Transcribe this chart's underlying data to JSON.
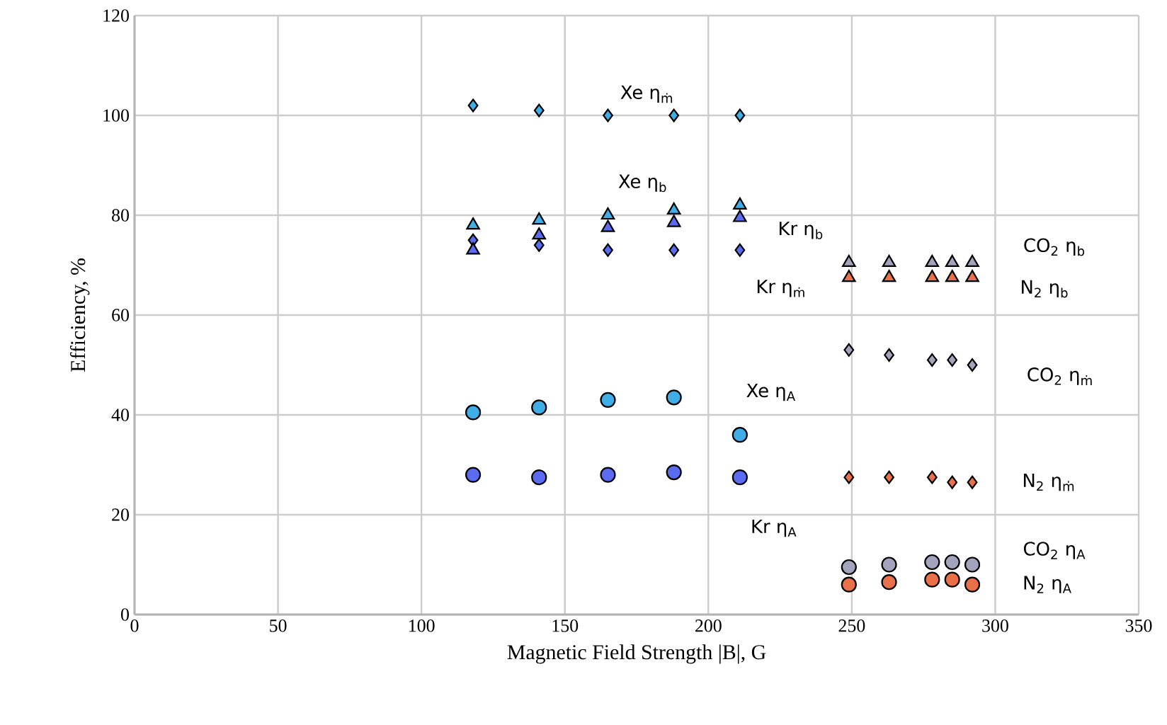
{
  "chart_data": {
    "type": "scatter",
    "xlabel": "Magnetic Field Strength |B|, G",
    "ylabel": "Efficiency, %",
    "xlim": [
      0,
      350
    ],
    "ylim": [
      0,
      120
    ],
    "xticks": [
      0,
      50,
      100,
      150,
      200,
      250,
      300,
      350
    ],
    "yticks": [
      0,
      20,
      40,
      60,
      80,
      100,
      120
    ],
    "grid": true,
    "legend": false,
    "series": [
      {
        "name": "Xe η$_{ṁ}$",
        "color": "#41ade6",
        "marker": "diamond",
        "x": [
          118,
          141,
          165,
          188,
          211
        ],
        "values": [
          102,
          101,
          100,
          100,
          100
        ]
      },
      {
        "name": "Kr η$_{ṁ}$",
        "color": "#5b6cf0",
        "marker": "diamond",
        "x": [
          118,
          141,
          165,
          188,
          211
        ],
        "values": [
          75,
          74,
          73,
          73,
          73
        ]
      },
      {
        "name": "Xe η$_{b}$",
        "color": "#41ade6",
        "marker": "triangle",
        "x": [
          118,
          141,
          165,
          188,
          211
        ],
        "values": [
          78,
          79,
          80,
          81,
          82
        ]
      },
      {
        "name": "Kr η$_{b}$",
        "color": "#5b6cf0",
        "marker": "triangle",
        "x": [
          118,
          141,
          165,
          188,
          211
        ],
        "values": [
          73,
          76,
          77.5,
          78.5,
          79.5
        ]
      },
      {
        "name": "Xe η$_{A}$",
        "color": "#41ade6",
        "marker": "circle",
        "x": [
          118,
          141,
          165,
          188,
          211
        ],
        "values": [
          40.5,
          41.5,
          43,
          43.5,
          36
        ]
      },
      {
        "name": "Kr η$_{A}$",
        "color": "#5b6cf0",
        "marker": "circle",
        "x": [
          118,
          141,
          165,
          188,
          211
        ],
        "values": [
          28,
          27.5,
          28,
          28.5,
          27.5
        ]
      },
      {
        "name": "CO$_{2}$ η$_{b}$",
        "color": "#a3a3bd",
        "marker": "triangle",
        "x": [
          249,
          263,
          278,
          285,
          292
        ],
        "values": [
          70.5,
          70.5,
          70.5,
          70.5,
          70.5
        ]
      },
      {
        "name": "N$_{2}$ η$_{b}$",
        "color": "#ea7049",
        "marker": "triangle",
        "x": [
          249,
          263,
          278,
          285,
          292
        ],
        "values": [
          67.5,
          67.5,
          67.5,
          67.5,
          67.5
        ]
      },
      {
        "name": "CO$_{2}$ η$_{ṁ}$",
        "color": "#a3a3bd",
        "marker": "diamond",
        "x": [
          249,
          263,
          278,
          285,
          292
        ],
        "values": [
          53,
          52,
          51,
          51,
          50
        ]
      },
      {
        "name": "N$_{2}$ η$_{ṁ}$",
        "color": "#ea7049",
        "marker": "diamond",
        "x": [
          249,
          263,
          278,
          285,
          292
        ],
        "values": [
          27.5,
          27.5,
          27.5,
          26.5,
          26.5
        ]
      },
      {
        "name": "CO$_{2}$ η$_{A}$",
        "color": "#a3a3bd",
        "marker": "circle",
        "x": [
          249,
          263,
          278,
          285,
          292
        ],
        "values": [
          9.5,
          10,
          10.5,
          10.5,
          10
        ]
      },
      {
        "name": "N$_{2}$ η$_{A}$",
        "color": "#ea7049",
        "marker": "circle",
        "x": [
          249,
          263,
          278,
          285,
          292
        ],
        "values": [
          6,
          6.5,
          7,
          7,
          6
        ]
      }
    ]
  }
}
